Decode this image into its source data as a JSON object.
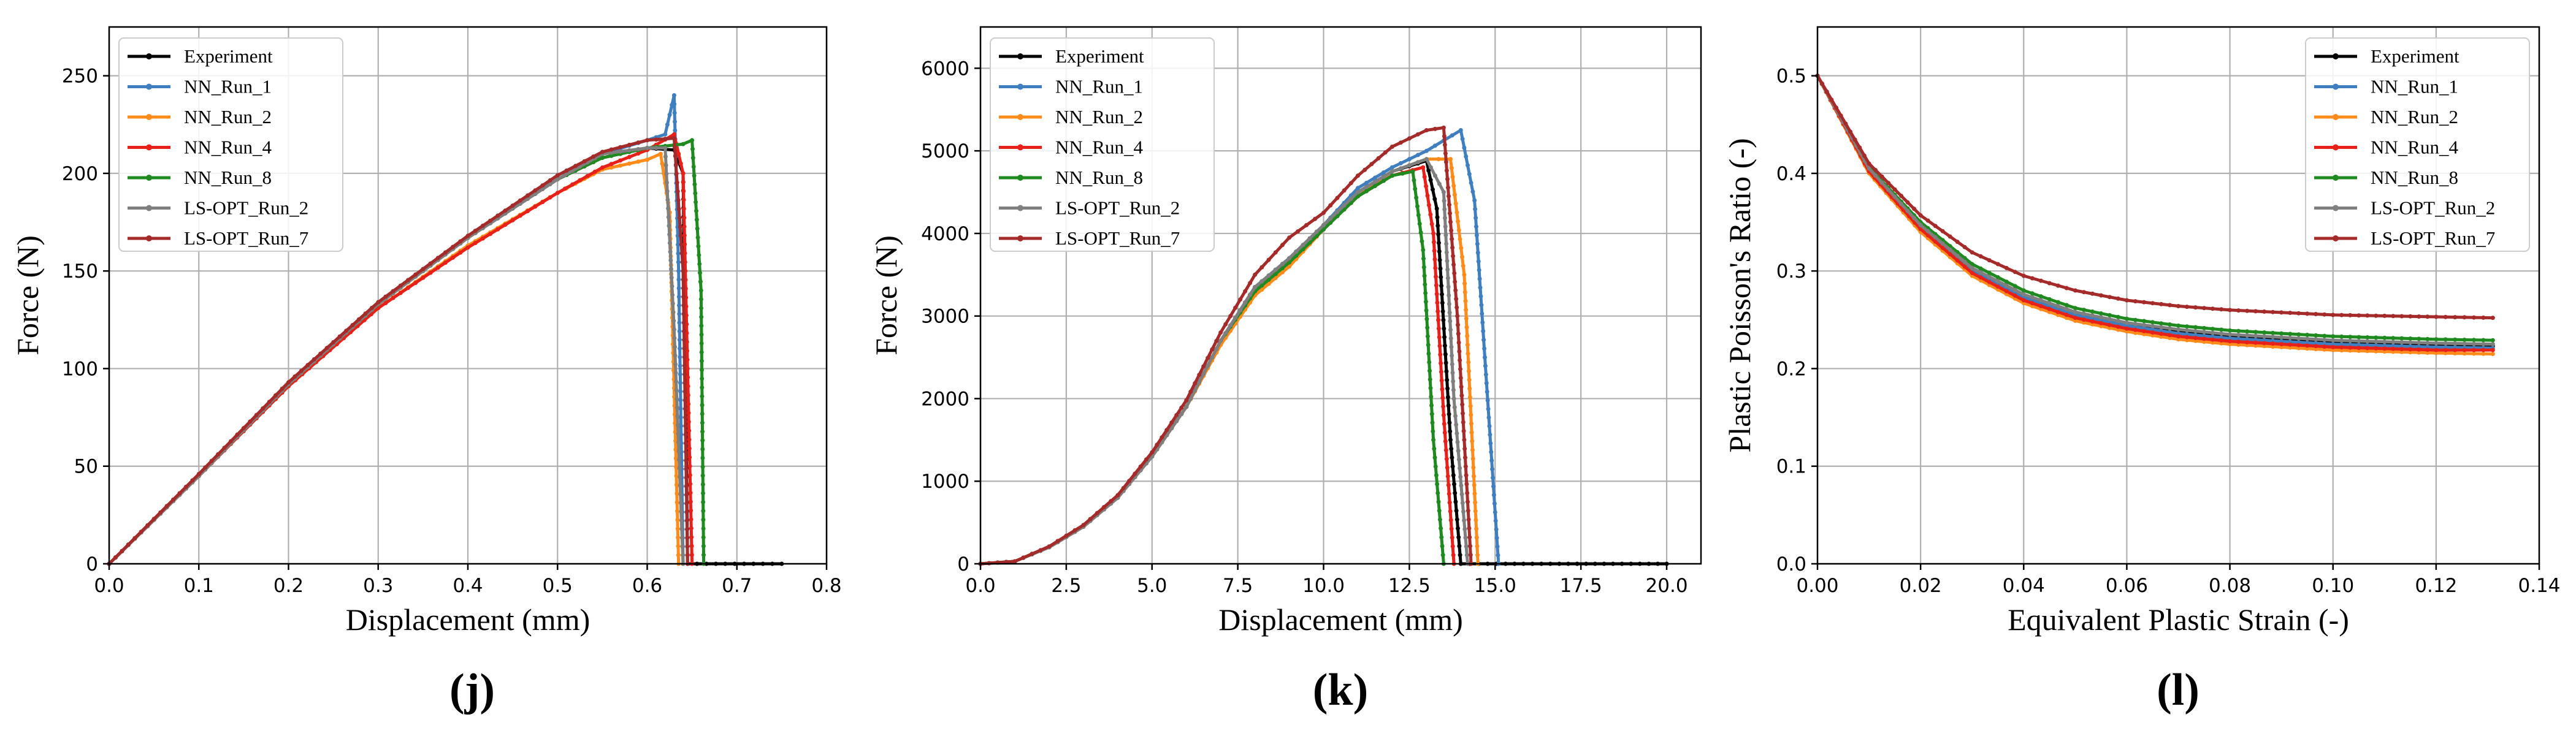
{
  "colors": {
    "Experiment": "#000000",
    "NN_Run_1": "#3f7fbf",
    "NN_Run_2": "#ff8c1a",
    "NN_Run_4": "#e8201a",
    "NN_Run_8": "#1f8a1f",
    "LS-OPT_Run_2": "#7f7f7f",
    "LS-OPT_Run_7": "#a52a2a"
  },
  "chart_data": [
    {
      "type": "line",
      "panel_label": "(j)",
      "xlabel": "Displacement (mm)",
      "ylabel": "Force (N)",
      "xlim": [
        0,
        0.8
      ],
      "ylim": [
        0,
        275
      ],
      "xticks": [
        0,
        0.1,
        0.2,
        0.3,
        0.4,
        0.5,
        0.6,
        0.7,
        0.8
      ],
      "xtick_labels": [
        "0.0",
        "0.1",
        "0.2",
        "0.3",
        "0.4",
        "0.5",
        "0.6",
        "0.7",
        "0.8"
      ],
      "yticks": [
        0,
        50,
        100,
        150,
        200,
        250
      ],
      "ytick_labels": [
        "0",
        "50",
        "100",
        "150",
        "200",
        "250"
      ],
      "legend_position": "top-left",
      "grid": true,
      "series": [
        {
          "name": "Experiment",
          "x": [
            0,
            0.1,
            0.2,
            0.3,
            0.4,
            0.5,
            0.55,
            0.6,
            0.63,
            0.64,
            0.645,
            0.75
          ],
          "y": [
            0,
            45,
            92,
            133,
            167,
            197,
            208,
            213,
            212,
            200,
            0,
            0
          ]
        },
        {
          "name": "NN_Run_1",
          "x": [
            0,
            0.1,
            0.2,
            0.3,
            0.4,
            0.5,
            0.55,
            0.6,
            0.62,
            0.63,
            0.635,
            0.64
          ],
          "y": [
            0,
            45,
            92,
            133,
            167,
            197,
            210,
            217,
            220,
            240,
            150,
            0
          ]
        },
        {
          "name": "NN_Run_2",
          "x": [
            0,
            0.1,
            0.2,
            0.3,
            0.4,
            0.5,
            0.55,
            0.6,
            0.615,
            0.625,
            0.635
          ],
          "y": [
            0,
            45,
            91,
            131,
            163,
            190,
            202,
            207,
            210,
            180,
            0
          ]
        },
        {
          "name": "NN_Run_4",
          "x": [
            0,
            0.1,
            0.2,
            0.3,
            0.4,
            0.5,
            0.55,
            0.6,
            0.63,
            0.64,
            0.645,
            0.65
          ],
          "y": [
            0,
            45,
            91,
            131,
            162,
            190,
            203,
            212,
            220,
            200,
            100,
            0
          ]
        },
        {
          "name": "NN_Run_8",
          "x": [
            0,
            0.1,
            0.2,
            0.3,
            0.4,
            0.5,
            0.55,
            0.6,
            0.64,
            0.65,
            0.66,
            0.663
          ],
          "y": [
            0,
            45,
            92,
            133,
            167,
            197,
            208,
            213,
            215,
            217,
            140,
            0
          ]
        },
        {
          "name": "LS-OPT_Run_2",
          "x": [
            0,
            0.1,
            0.2,
            0.3,
            0.4,
            0.5,
            0.55,
            0.6,
            0.62,
            0.63,
            0.64
          ],
          "y": [
            0,
            45,
            92,
            133,
            167,
            197,
            210,
            213,
            213,
            120,
            0
          ]
        },
        {
          "name": "LS-OPT_Run_7",
          "x": [
            0,
            0.1,
            0.2,
            0.3,
            0.4,
            0.5,
            0.55,
            0.6,
            0.63,
            0.64,
            0.645
          ],
          "y": [
            0,
            46,
            93,
            134,
            168,
            199,
            211,
            217,
            218,
            150,
            0
          ]
        }
      ]
    },
    {
      "type": "line",
      "panel_label": "(k)",
      "xlabel": "Displacement (mm)",
      "ylabel": "Force (N)",
      "xlim": [
        0,
        21
      ],
      "ylim": [
        0,
        6500
      ],
      "xticks": [
        0,
        2.5,
        5,
        7.5,
        10,
        12.5,
        15,
        17.5,
        20
      ],
      "xtick_labels": [
        "0.0",
        "2.5",
        "5.0",
        "7.5",
        "10.0",
        "12.5",
        "15.0",
        "17.5",
        "20.0"
      ],
      "yticks": [
        0,
        1000,
        2000,
        3000,
        4000,
        5000,
        6000
      ],
      "ytick_labels": [
        "0",
        "1000",
        "2000",
        "3000",
        "4000",
        "5000",
        "6000"
      ],
      "legend_position": "top-left",
      "grid": true,
      "series": [
        {
          "name": "Experiment",
          "x": [
            0,
            1,
            2,
            3,
            4,
            5,
            6,
            7,
            8,
            9,
            10,
            11,
            12,
            13,
            13.3,
            13.7,
            14,
            20
          ],
          "y": [
            0,
            30,
            200,
            450,
            800,
            1300,
            1900,
            2700,
            3350,
            3700,
            4100,
            4500,
            4750,
            4880,
            4300,
            1500,
            0,
            0
          ]
        },
        {
          "name": "NN_Run_1",
          "x": [
            0,
            1,
            2,
            3,
            4,
            5,
            6,
            7,
            8,
            9,
            10,
            11,
            12,
            13,
            14,
            14.4,
            14.7,
            15.1
          ],
          "y": [
            0,
            30,
            200,
            450,
            800,
            1300,
            1900,
            2700,
            3350,
            3700,
            4100,
            4550,
            4800,
            5000,
            5250,
            4400,
            2500,
            0
          ]
        },
        {
          "name": "NN_Run_2",
          "x": [
            0,
            1,
            2,
            3,
            4,
            5,
            6,
            7,
            8,
            9,
            10,
            11,
            12,
            13,
            13.7,
            14.1,
            14.5
          ],
          "y": [
            0,
            30,
            200,
            450,
            800,
            1300,
            1900,
            2650,
            3250,
            3600,
            4050,
            4450,
            4750,
            4900,
            4900,
            3500,
            0
          ]
        },
        {
          "name": "NN_Run_4",
          "x": [
            0,
            1,
            2,
            3,
            4,
            5,
            6,
            7,
            8,
            9,
            10,
            11,
            12,
            12.9,
            13.2,
            13.5,
            13.8
          ],
          "y": [
            0,
            30,
            200,
            450,
            800,
            1300,
            1900,
            2700,
            3300,
            3650,
            4050,
            4450,
            4700,
            4800,
            4000,
            1800,
            0
          ]
        },
        {
          "name": "NN_Run_8",
          "x": [
            0,
            1,
            2,
            3,
            4,
            5,
            6,
            7,
            8,
            9,
            10,
            11,
            12,
            12.6,
            12.9,
            13.2,
            13.5
          ],
          "y": [
            0,
            30,
            200,
            450,
            800,
            1300,
            1900,
            2700,
            3300,
            3650,
            4050,
            4450,
            4700,
            4750,
            3800,
            1500,
            0
          ]
        },
        {
          "name": "LS-OPT_Run_2",
          "x": [
            0,
            1,
            2,
            3,
            4,
            5,
            6,
            7,
            8,
            9,
            10,
            11,
            12,
            13,
            13.5,
            13.8,
            14.2
          ],
          "y": [
            0,
            30,
            200,
            450,
            800,
            1300,
            1900,
            2700,
            3350,
            3700,
            4100,
            4500,
            4750,
            4900,
            4500,
            2000,
            0
          ]
        },
        {
          "name": "LS-OPT_Run_7",
          "x": [
            0,
            1,
            2,
            3,
            4,
            5,
            6,
            7,
            8,
            9,
            10,
            11,
            12,
            13,
            13.5,
            13.9,
            14.3
          ],
          "y": [
            0,
            30,
            210,
            470,
            830,
            1350,
            1980,
            2800,
            3500,
            3950,
            4250,
            4700,
            5050,
            5250,
            5280,
            3000,
            0
          ]
        }
      ]
    },
    {
      "type": "line",
      "panel_label": "(l)",
      "xlabel": "Equivalent Plastic Strain (-)",
      "ylabel": "Plastic Poisson's Ratio (-)",
      "xlim": [
        0,
        0.14
      ],
      "ylim": [
        0,
        0.55
      ],
      "xticks": [
        0,
        0.02,
        0.04,
        0.06,
        0.08,
        0.1,
        0.12,
        0.14
      ],
      "xtick_labels": [
        "0.00",
        "0.02",
        "0.04",
        "0.06",
        "0.08",
        "0.10",
        "0.12",
        "0.14"
      ],
      "yticks": [
        0,
        0.1,
        0.2,
        0.3,
        0.4,
        0.5
      ],
      "ytick_labels": [
        "0.0",
        "0.1",
        "0.2",
        "0.3",
        "0.4",
        "0.5"
      ],
      "legend_position": "top-right",
      "grid": true,
      "series": [
        {
          "name": "Experiment",
          "x": [
            0,
            0.01,
            0.02,
            0.03,
            0.04,
            0.05,
            0.06,
            0.07,
            0.08,
            0.1,
            0.12,
            0.131
          ],
          "y": [
            0.5,
            0.405,
            0.348,
            0.303,
            0.275,
            0.257,
            0.246,
            0.238,
            0.233,
            0.227,
            0.224,
            0.223
          ]
        },
        {
          "name": "NN_Run_1",
          "x": [
            0,
            0.01,
            0.02,
            0.03,
            0.04,
            0.05,
            0.06,
            0.07,
            0.08,
            0.1,
            0.12,
            0.131
          ],
          "y": [
            0.5,
            0.404,
            0.346,
            0.301,
            0.273,
            0.255,
            0.244,
            0.236,
            0.231,
            0.225,
            0.222,
            0.221
          ]
        },
        {
          "name": "NN_Run_2",
          "x": [
            0,
            0.01,
            0.02,
            0.03,
            0.04,
            0.05,
            0.06,
            0.07,
            0.08,
            0.1,
            0.12,
            0.131
          ],
          "y": [
            0.5,
            0.4,
            0.34,
            0.295,
            0.267,
            0.249,
            0.238,
            0.23,
            0.225,
            0.219,
            0.216,
            0.215
          ]
        },
        {
          "name": "NN_Run_4",
          "x": [
            0,
            0.01,
            0.02,
            0.03,
            0.04,
            0.05,
            0.06,
            0.07,
            0.08,
            0.1,
            0.12,
            0.131
          ],
          "y": [
            0.5,
            0.402,
            0.343,
            0.298,
            0.27,
            0.252,
            0.241,
            0.233,
            0.228,
            0.222,
            0.219,
            0.219
          ]
        },
        {
          "name": "NN_Run_8",
          "x": [
            0,
            0.01,
            0.02,
            0.03,
            0.04,
            0.05,
            0.06,
            0.07,
            0.08,
            0.1,
            0.12,
            0.131
          ],
          "y": [
            0.5,
            0.406,
            0.35,
            0.307,
            0.28,
            0.262,
            0.251,
            0.244,
            0.239,
            0.233,
            0.23,
            0.229
          ]
        },
        {
          "name": "LS-OPT_Run_2",
          "x": [
            0,
            0.01,
            0.02,
            0.03,
            0.04,
            0.05,
            0.06,
            0.07,
            0.08,
            0.1,
            0.12,
            0.131
          ],
          "y": [
            0.5,
            0.405,
            0.347,
            0.303,
            0.276,
            0.258,
            0.247,
            0.24,
            0.235,
            0.229,
            0.226,
            0.225
          ]
        },
        {
          "name": "LS-OPT_Run_7",
          "x": [
            0,
            0.01,
            0.02,
            0.03,
            0.04,
            0.05,
            0.06,
            0.07,
            0.08,
            0.1,
            0.12,
            0.131
          ],
          "y": [
            0.5,
            0.41,
            0.357,
            0.319,
            0.295,
            0.28,
            0.27,
            0.264,
            0.26,
            0.255,
            0.253,
            0.252
          ]
        }
      ]
    }
  ]
}
